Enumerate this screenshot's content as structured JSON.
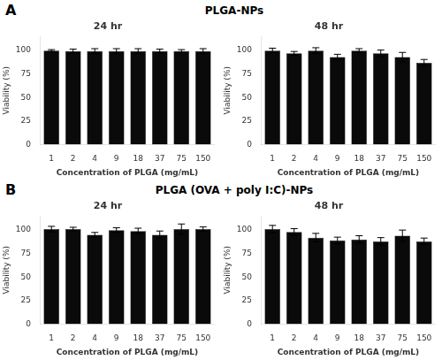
{
  "chart_data": [
    {
      "type": "bar",
      "title": "24 hr",
      "xlabel": "Concentration of PLGA (mg/mL)",
      "ylabel": "Viability (%)",
      "annotations": [
        "A",
        "PLGA-NPs"
      ],
      "categories": [
        "1",
        "2",
        "4",
        "9",
        "18",
        "37",
        "75",
        "150"
      ],
      "values": [
        100,
        99.5,
        99.5,
        99.5,
        99.5,
        99.5,
        99.5,
        99.5
      ],
      "errors": [
        1.0,
        2.0,
        2.5,
        2.5,
        2.5,
        2.0,
        1.5,
        2.5
      ],
      "color": "#0a0a0a",
      "ylim": [
        0,
        115
      ],
      "yticks": [
        0,
        25,
        50,
        75,
        100
      ],
      "grid": false
    },
    {
      "type": "bar",
      "title": "48 hr",
      "xlabel": "Concentration of PLGA (mg/mL)",
      "ylabel": "Viability (%)",
      "categories": [
        "1",
        "2",
        "4",
        "9",
        "18",
        "37",
        "75",
        "150"
      ],
      "values": [
        100,
        97,
        100,
        93,
        100,
        97,
        93,
        87
      ],
      "errors": [
        2.5,
        2.0,
        3.0,
        3.0,
        2.0,
        3.5,
        5.0,
        3.5
      ],
      "color": "#0a0a0a",
      "ylim": [
        0,
        115
      ],
      "yticks": [
        0,
        25,
        50,
        75,
        100
      ],
      "grid": false
    },
    {
      "type": "bar",
      "title": "24 hr",
      "xlabel": "Concentration of PLGA (mg/mL)",
      "ylabel": "Viability (%)",
      "annotations": [
        "B",
        "PLGA (OVA + poly I:C)-NPs"
      ],
      "categories": [
        "1",
        "2",
        "4",
        "9",
        "18",
        "37",
        "75",
        "150"
      ],
      "values": [
        101,
        101,
        95,
        100,
        99,
        95,
        101,
        101
      ],
      "errors": [
        3.0,
        2.0,
        2.5,
        2.5,
        3.0,
        4.0,
        5.5,
        2.5
      ],
      "color": "#0a0a0a",
      "ylim": [
        0,
        115
      ],
      "yticks": [
        0,
        25,
        50,
        75,
        100
      ],
      "grid": false
    },
    {
      "type": "bar",
      "title": "48 hr",
      "xlabel": "Concentration of PLGA (mg/mL)",
      "ylabel": "Viability (%)",
      "categories": [
        "1",
        "2",
        "4",
        "9",
        "18",
        "37",
        "75",
        "150"
      ],
      "values": [
        101,
        98,
        92,
        89,
        90,
        88,
        94,
        88
      ],
      "errors": [
        4.0,
        3.5,
        4.5,
        3.5,
        4.0,
        4.0,
        6.0,
        3.5
      ],
      "color": "#0a0a0a",
      "ylim": [
        0,
        115
      ],
      "yticks": [
        0,
        25,
        50,
        75,
        100
      ],
      "grid": false
    }
  ]
}
